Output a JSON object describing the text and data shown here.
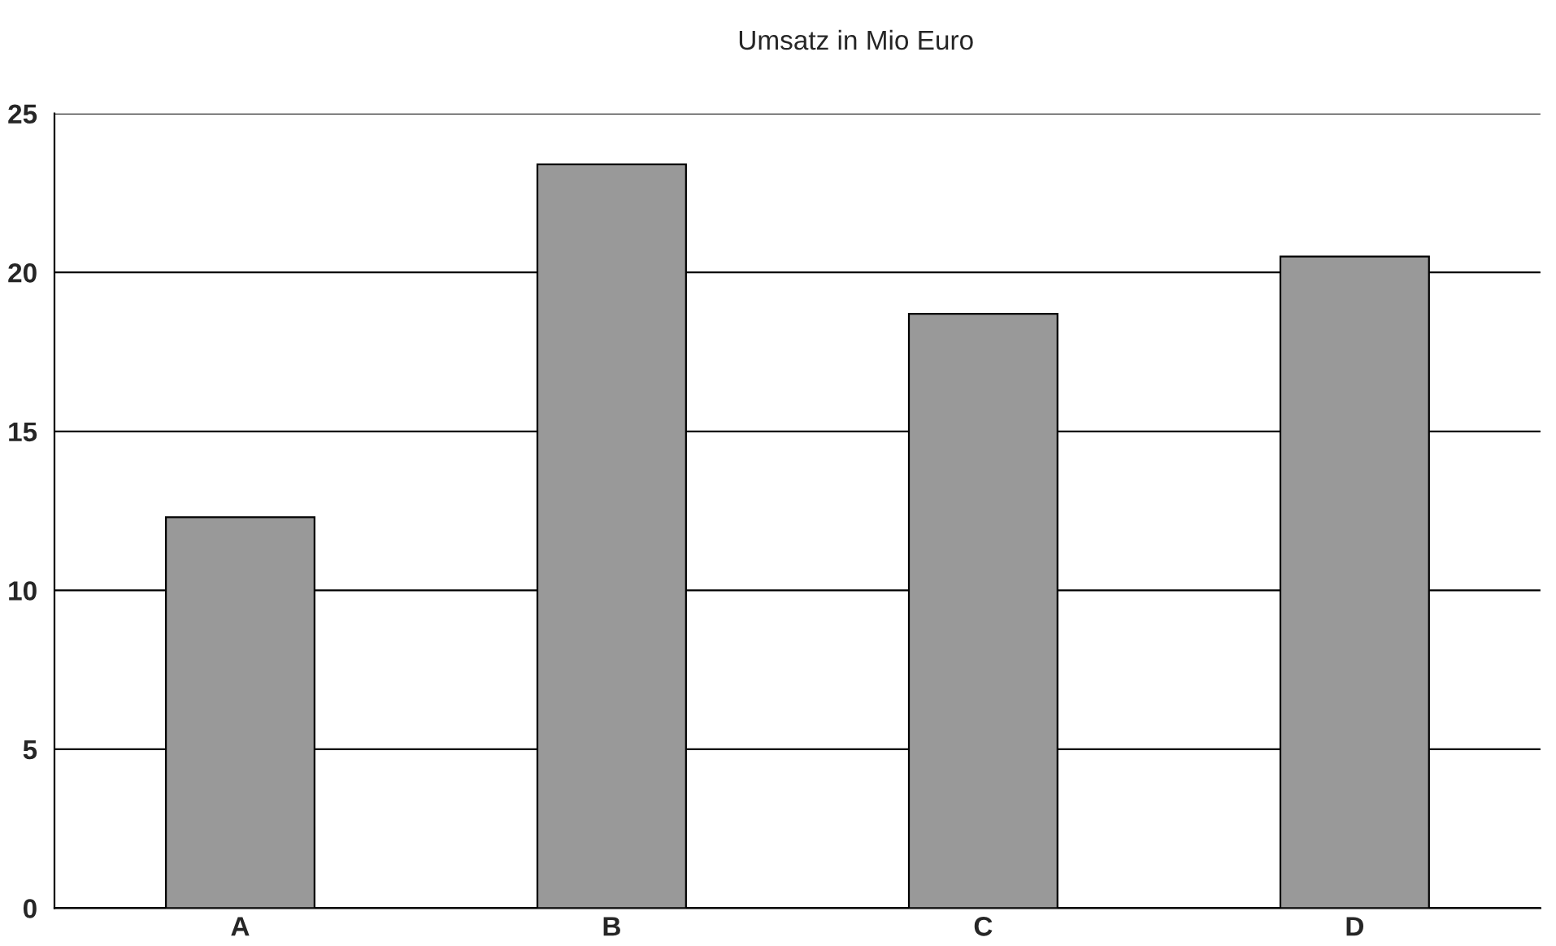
{
  "chart_data": {
    "type": "bar",
    "title": "Umsatz in Mio Euro",
    "categories": [
      "A",
      "B",
      "C",
      "D"
    ],
    "values": [
      12.3,
      23.4,
      18.7,
      20.5
    ],
    "color": "#999999",
    "ylim": [
      0,
      25
    ],
    "yticks": [
      0,
      5,
      10,
      15,
      20,
      25
    ],
    "grid": "y",
    "legend": false
  }
}
